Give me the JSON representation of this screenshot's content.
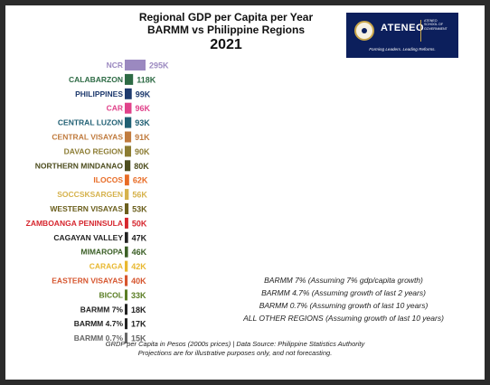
{
  "header": {
    "line1": "Regional GDP per Capita per Year",
    "line2": "BARMM vs Philippine Regions",
    "year": "2021"
  },
  "logo": {
    "name": "ATENEO",
    "sub_line1": "ATENEO",
    "sub_line2": "SCHOOL OF",
    "sub_line3": "GOVERNMENT",
    "tagline": "Forming Leaders. Leading Reforms."
  },
  "chart_data": {
    "type": "bar",
    "orientation": "horizontal",
    "units": "thousand pesos (2000s prices)",
    "categories": [
      "NCR",
      "CALABARZON",
      "PHILIPPINES",
      "CAR",
      "CENTRAL LUZON",
      "CENTRAL VISAYAS",
      "DAVAO REGION",
      "NORTHERN MINDANAO",
      "ILOCOS",
      "SOCCSKSARGEN",
      "WESTERN VISAYAS",
      "ZAMBOANGA PENINSULA",
      "CAGAYAN VALLEY",
      "MIMAROPA",
      "CARAGA",
      "EASTERN VISAYAS",
      "BICOL",
      "BARMM 7%",
      "BARMM 4.7%",
      "BARMM 0.7%"
    ],
    "values": [
      295,
      118,
      99,
      96,
      93,
      91,
      90,
      80,
      62,
      56,
      53,
      50,
      47,
      46,
      42,
      40,
      33,
      18,
      17,
      15
    ],
    "value_labels": [
      "295K",
      "118K",
      "99K",
      "96K",
      "93K",
      "91K",
      "90K",
      "80K",
      "62K",
      "56K",
      "53K",
      "50K",
      "47K",
      "46K",
      "42K",
      "40K",
      "33K",
      "18K",
      "17K",
      "15K"
    ],
    "colors": [
      "#9b89c0",
      "#2e6b45",
      "#1e3a6e",
      "#e0428a",
      "#1f5f73",
      "#c07b3e",
      "#8c7c33",
      "#4d4d1e",
      "#e86c26",
      "#d6b24c",
      "#6b5f1d",
      "#d6262e",
      "#222222",
      "#3b5f26",
      "#e8b830",
      "#d6552e",
      "#5a7d24",
      "#222222",
      "#222222",
      "#666666"
    ],
    "title": "Regional GDP per Capita per Year BARMM vs Philippine Regions 2021"
  },
  "notes": [
    "BARMM 7% (Assuming 7% gdp/capita growth)",
    "BARMM 4.7% (Assuming growth of last 2 years)",
    "BARMM 0.7% (Assuming growth of last 10 years)",
    "ALL OTHER REGIONS (Assuming growth of last 10 years)"
  ],
  "footer": {
    "line1": "GRDP per Capita in Pesos (2000s prices) | Data Source: Philippine Statistics Authority",
    "line2": "Projections are for illustrative purposes only, and not forecasting."
  }
}
